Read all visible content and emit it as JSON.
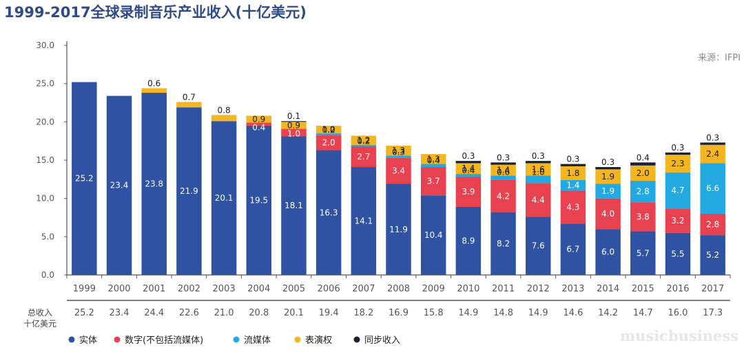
{
  "title": "1999-2017全球录制音乐产业收入(十亿美元)",
  "source": "来源：IFPI",
  "watermark": "musicbusiness",
  "total_label_line1": "总收入",
  "total_label_line2": "十亿美元",
  "colors": {
    "physical": "#2f52a3",
    "digital": "#e8414f",
    "streaming": "#23a9e1",
    "performance": "#f3b621",
    "sync": "#1b2133"
  },
  "chart_data": {
    "type": "bar",
    "stacked": true,
    "categories": [
      "1999",
      "2000",
      "2001",
      "2002",
      "2003",
      "2004",
      "2005",
      "2006",
      "2007",
      "2008",
      "2009",
      "2010",
      "2011",
      "2012",
      "2013",
      "2014",
      "2015",
      "2016",
      "2017"
    ],
    "ylim": [
      0,
      30
    ],
    "yticks": [
      "0.0",
      "5.0",
      "10.0",
      "15.0",
      "20.0",
      "25.0",
      "30.0"
    ],
    "series": [
      {
        "name": "实体",
        "key": "physical",
        "values": [
          25.2,
          23.4,
          23.8,
          21.9,
          20.1,
          19.5,
          18.1,
          16.3,
          14.1,
          11.9,
          10.4,
          8.9,
          8.2,
          7.6,
          6.7,
          6.0,
          5.7,
          5.5,
          5.2
        ],
        "labels": [
          "25.2",
          "23.4",
          "23.8",
          "21.9",
          "20.1",
          "19.5",
          "18.1",
          "16.3",
          "14.1",
          "11.9",
          "10.4",
          "8.9",
          "8.2",
          "7.6",
          "6.7",
          "6.0",
          "5.7",
          "5.5",
          "5.2"
        ]
      },
      {
        "name": "数字(不包括流媒体)",
        "key": "digital",
        "values": [
          0,
          0,
          0,
          0,
          0,
          0.4,
          1.0,
          2.0,
          2.7,
          3.4,
          3.7,
          3.9,
          4.2,
          4.4,
          4.3,
          4.0,
          3.8,
          3.2,
          2.8
        ],
        "labels": [
          "",
          "",
          "",
          "",
          "",
          "0.4",
          "1.0",
          "2.0",
          "2.7",
          "3.4",
          "3.7",
          "3.9",
          "4.2",
          "4.4",
          "4.3",
          "4.0",
          "3.8",
          "3.2",
          "2.8"
        ]
      },
      {
        "name": "流媒体",
        "key": "streaming",
        "values": [
          0,
          0,
          0,
          0,
          0,
          0,
          0,
          0.2,
          0.2,
          0.3,
          0.4,
          0.4,
          0.6,
          1.0,
          1.4,
          1.9,
          2.8,
          4.7,
          6.6
        ],
        "labels": [
          "",
          "",
          "",
          "",
          "",
          "",
          "",
          "0.2",
          "0.2",
          "0.3",
          "0.4",
          "0.4",
          "0.6",
          "1.0",
          "1.4",
          "1.9",
          "2.8",
          "4.7",
          "6.6"
        ]
      },
      {
        "name": "表演权",
        "key": "performance",
        "values": [
          0,
          0,
          0.6,
          0.7,
          0.8,
          0.9,
          0.9,
          1.0,
          1.2,
          1.3,
          1.3,
          1.4,
          1.4,
          1.6,
          1.8,
          1.9,
          2.0,
          2.3,
          2.4
        ],
        "labels": [
          "",
          "",
          "0.6",
          "0.7",
          "0.8",
          "0.9",
          "0.9",
          "1.0",
          "1.2",
          "1.3",
          "1.3",
          "1.4",
          "1.4",
          "1.6",
          "1.8",
          "1.9",
          "2.0",
          "2.3",
          "2.4"
        ]
      },
      {
        "name": "同步收入",
        "key": "sync",
        "values": [
          0,
          0,
          0,
          0,
          0,
          0,
          0.1,
          0,
          0,
          0,
          0,
          0.3,
          0.3,
          0.3,
          0.3,
          0.3,
          0.4,
          0.3,
          0.3
        ],
        "labels": [
          "",
          "",
          "",
          "",
          "",
          "",
          "0.1",
          "",
          "",
          "",
          "",
          "0.3",
          "0.3",
          "0.3",
          "0.3",
          "0.3",
          "0.4",
          "0.3",
          "0.3"
        ]
      }
    ],
    "totals": [
      "25.2",
      "23.4",
      "24.4",
      "22.6",
      "21.0",
      "20.8",
      "20.1",
      "19.4",
      "18.2",
      "16.9",
      "15.8",
      "14.9",
      "14.8",
      "14.9",
      "14.6",
      "14.2",
      "14.7",
      "16.0",
      "17.3"
    ],
    "legend_position": "bottom-left"
  }
}
